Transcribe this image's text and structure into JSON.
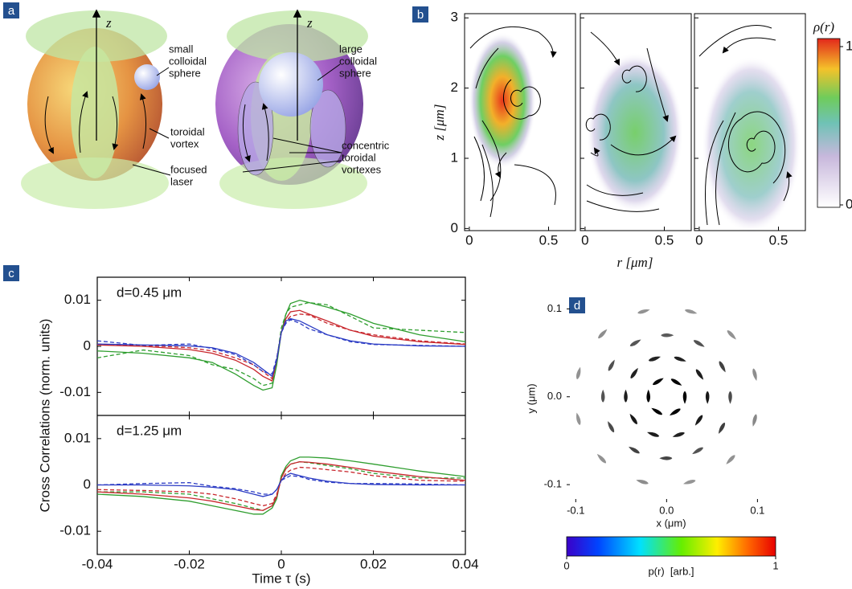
{
  "panel_labels": [
    "a",
    "b",
    "c",
    "d"
  ],
  "panel_a": {
    "axis_labels": [
      "z",
      "z"
    ],
    "annotations": [
      [
        "small",
        "colloidal",
        "sphere"
      ],
      [
        "toroidal",
        "vortex"
      ],
      [
        "focused",
        "laser"
      ],
      [
        "large",
        "colloidal",
        "sphere"
      ],
      [
        "concentric",
        "toroidal",
        "vortexes"
      ]
    ]
  },
  "chart_data": [
    {
      "type": "heatmap",
      "xlabel": "r [μm]",
      "ylabel": "z [μm]",
      "colorbar_label": "ρ(r)",
      "xlim": [
        -0.03,
        0.67
      ],
      "ylim": [
        -0.03,
        3.06
      ],
      "xticks": [
        0,
        0.5
      ],
      "yticks": [
        0,
        1,
        2,
        3
      ],
      "colorbar_ticks": [
        0,
        1
      ]
    },
    {
      "type": "line",
      "annotation": "d=0.45 μm",
      "ylabel": "Cross Correlations (norm. units)",
      "x": [
        -0.04,
        -0.03,
        -0.02,
        -0.015,
        -0.01,
        -0.006,
        -0.004,
        -0.002,
        -0.001,
        0,
        0.001,
        0.002,
        0.004,
        0.006,
        0.01,
        0.015,
        0.02,
        0.03,
        0.04
      ],
      "xlim": [
        -0.04,
        0.04
      ],
      "ylim": [
        -0.015,
        0.015
      ],
      "xticks": [
        -0.04,
        -0.02,
        0,
        0.02,
        0.04
      ],
      "yticks": [
        -0.01,
        0,
        0.01
      ],
      "series": [
        {
          "color": "#2f9e2f",
          "dash": true,
          "values": [
            -0.0025,
            -0.0008,
            -0.002,
            -0.004,
            -0.005,
            -0.007,
            -0.0085,
            -0.008,
            -0.003,
            0.004,
            0.007,
            0.0085,
            0.009,
            0.0095,
            0.009,
            0.0065,
            0.004,
            0.0035,
            0.003
          ]
        },
        {
          "color": "#c8252b",
          "dash": true,
          "values": [
            0.0005,
            0.0002,
            -0.0003,
            -0.001,
            -0.0025,
            -0.004,
            -0.0055,
            -0.007,
            -0.003,
            0.003,
            0.0055,
            0.0065,
            0.007,
            0.0068,
            0.005,
            0.0035,
            0.0025,
            0.0012,
            0.0005
          ]
        },
        {
          "color": "#2b3bc4",
          "dash": true,
          "values": [
            0.0012,
            0.0002,
            0.0005,
            -0.0005,
            -0.0018,
            -0.004,
            -0.0055,
            -0.006,
            -0.0025,
            0.003,
            0.005,
            0.0058,
            0.005,
            0.0038,
            0.0025,
            0.001,
            0.0004,
            0.0002,
            0
          ]
        },
        {
          "color": "#2f9e2f",
          "dash": false,
          "values": [
            -0.001,
            -0.0015,
            -0.0025,
            -0.0035,
            -0.006,
            -0.0085,
            -0.0095,
            -0.009,
            -0.004,
            0.003,
            0.007,
            0.0093,
            0.01,
            0.0095,
            0.0085,
            0.007,
            0.005,
            0.0025,
            0.001
          ]
        },
        {
          "color": "#c8252b",
          "dash": false,
          "values": [
            0.0003,
            0,
            -0.0007,
            -0.0015,
            -0.003,
            -0.005,
            -0.0065,
            -0.0075,
            -0.003,
            0.003,
            0.006,
            0.0075,
            0.0078,
            0.007,
            0.0055,
            0.0035,
            0.0022,
            0.001,
            0.0004
          ]
        },
        {
          "color": "#2b3bc4",
          "dash": false,
          "values": [
            0.0005,
            0.0003,
            0.0001,
            -0.0003,
            -0.0015,
            -0.0035,
            -0.005,
            -0.0065,
            -0.003,
            0.003,
            0.0055,
            0.006,
            0.0055,
            0.0045,
            0.0025,
            0.0012,
            0.0005,
            0.0001,
            0
          ]
        }
      ]
    },
    {
      "type": "line",
      "annotation": "d=1.25 μm",
      "xlabel": "Time τ (s)",
      "x": [
        -0.04,
        -0.03,
        -0.02,
        -0.015,
        -0.01,
        -0.006,
        -0.004,
        -0.002,
        -0.001,
        0,
        0.001,
        0.002,
        0.004,
        0.006,
        0.01,
        0.015,
        0.02,
        0.03,
        0.04
      ],
      "xlim": [
        -0.04,
        0.04
      ],
      "ylim": [
        -0.015,
        0.015
      ],
      "xticks": [
        -0.04,
        -0.02,
        0,
        0.02,
        0.04
      ],
      "yticks": [
        -0.01,
        0,
        0.01
      ],
      "series": [
        {
          "color": "#2f9e2f",
          "dash": true,
          "values": [
            -0.0015,
            -0.0015,
            -0.002,
            -0.003,
            -0.004,
            -0.005,
            -0.0055,
            -0.0045,
            -0.0025,
            0.002,
            0.0035,
            0.0045,
            0.005,
            0.0048,
            0.0042,
            0.0035,
            0.0025,
            0.0015,
            0.0015
          ]
        },
        {
          "color": "#c8252b",
          "dash": true,
          "values": [
            -0.001,
            -0.0012,
            -0.0015,
            -0.002,
            -0.003,
            -0.004,
            -0.0045,
            -0.004,
            -0.002,
            0.001,
            0.0025,
            0.0032,
            0.0038,
            0.0037,
            0.0033,
            0.0028,
            0.002,
            0.001,
            0.0008
          ]
        },
        {
          "color": "#2b3bc4",
          "dash": true,
          "values": [
            0,
            0.0003,
            0.0005,
            -0.0003,
            -0.0008,
            -0.0015,
            -0.002,
            -0.002,
            -0.001,
            0.001,
            0.0015,
            0.002,
            0.0018,
            0.0012,
            0.0006,
            0.0003,
            0.0003,
            0.0002,
            0
          ]
        },
        {
          "color": "#2f9e2f",
          "dash": false,
          "values": [
            -0.002,
            -0.0025,
            -0.0035,
            -0.0045,
            -0.0055,
            -0.0063,
            -0.0063,
            -0.005,
            -0.003,
            0.002,
            0.004,
            0.0052,
            0.006,
            0.006,
            0.0058,
            0.0052,
            0.0045,
            0.003,
            0.0018
          ]
        },
        {
          "color": "#c8252b",
          "dash": false,
          "values": [
            -0.0015,
            -0.002,
            -0.0028,
            -0.0035,
            -0.0045,
            -0.0053,
            -0.0055,
            -0.0045,
            -0.0025,
            0.0015,
            0.0035,
            0.0045,
            0.005,
            0.0049,
            0.0045,
            0.0038,
            0.003,
            0.0018,
            0.001
          ]
        },
        {
          "color": "#2b3bc4",
          "dash": false,
          "values": [
            0,
            0,
            -0.0002,
            -0.0005,
            -0.001,
            -0.002,
            -0.0025,
            -0.002,
            -0.001,
            0.001,
            0.002,
            0.0025,
            0.002,
            0.0015,
            0.0008,
            0.0003,
            0.0001,
            0,
            0
          ]
        }
      ]
    },
    {
      "type": "vector_field",
      "xlabel": "x (μm)",
      "ylabel": "y (μm)",
      "colorbar_label": "p(r)  [arb.]",
      "xlim": [
        -0.11,
        0.12
      ],
      "ylim": [
        -0.12,
        0.115
      ],
      "xticks": [
        -0.1,
        {
          "value": 0,
          "label": "0.0"
        },
        0.1
      ],
      "yticks": [
        -0.1,
        {
          "value": 0,
          "label": "0.0"
        },
        0.1
      ],
      "colorbar_ticks": [
        0,
        1
      ],
      "x": [
        0.02,
        0.01,
        -0.01,
        -0.02,
        -0.01,
        0.01,
        0.045,
        0.036,
        0.014,
        -0.014,
        -0.036,
        -0.045,
        -0.036,
        -0.014,
        0.014,
        0.036,
        0.07,
        0.061,
        0.035,
        0,
        -0.035,
        -0.061,
        -0.07,
        -0.061,
        -0.035,
        0,
        0.035,
        0.061,
        0.097,
        0.071,
        0.026,
        -0.026,
        -0.071,
        -0.097,
        -0.097,
        -0.071,
        -0.026,
        0.026,
        0.071,
        0.097
      ],
      "y": [
        0,
        0.017,
        0.017,
        0,
        -0.017,
        -0.017,
        0,
        0.026,
        0.043,
        0.043,
        0.026,
        0,
        -0.026,
        -0.043,
        -0.043,
        -0.026,
        0,
        0.035,
        0.061,
        0.07,
        0.061,
        0.035,
        0,
        -0.035,
        -0.061,
        -0.07,
        -0.061,
        -0.035,
        0.026,
        0.071,
        0.097,
        0.097,
        0.071,
        0.026,
        -0.026,
        -0.071,
        -0.097,
        -0.097,
        -0.071,
        -0.026
      ],
      "values": [
        0.98,
        0.97,
        0.96,
        0.97,
        0.98,
        0.97,
        0.85,
        0.82,
        0.8,
        0.78,
        0.8,
        0.82,
        0.85,
        0.83,
        0.8,
        0.84,
        0.55,
        0.6,
        0.5,
        0.45,
        0.48,
        0.52,
        0.5,
        0.55,
        0.6,
        0.58,
        0.5,
        0.62,
        0.15,
        0.12,
        0.1,
        0.12,
        0.15,
        0.12,
        0.1,
        0.12,
        0.15,
        0.1,
        0.12,
        0.18
      ]
    }
  ]
}
